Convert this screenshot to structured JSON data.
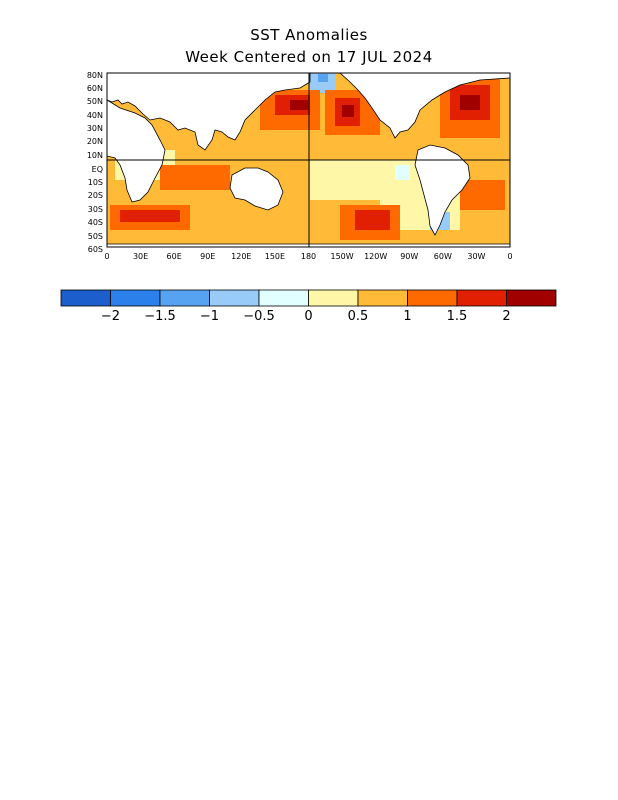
{
  "title": "SST Anomalies",
  "subtitle": "Week Centered on 17 JUL 2024",
  "map": {
    "lat_labels": [
      "80N",
      "60N",
      "50N",
      "40N",
      "30N",
      "20N",
      "10N",
      "EQ",
      "10S",
      "20S",
      "30S",
      "40S",
      "50S",
      "60S"
    ],
    "lon_labels": [
      "0",
      "30E",
      "60E",
      "90E",
      "120E",
      "150E",
      "180",
      "150W",
      "120W",
      "90W",
      "60W",
      "30W",
      "0"
    ]
  },
  "colorbar": {
    "colors": [
      "#1c5fcc",
      "#2b80eb",
      "#56a3f2",
      "#98cbf8",
      "#e2ffff",
      "#fff7a8",
      "#ffba38",
      "#ff6a00",
      "#e02000",
      "#a00000"
    ],
    "tick_labels": [
      "−2",
      "−1.5",
      "−1",
      "−0.5",
      "0",
      "0.5",
      "1",
      "1.5",
      "2"
    ]
  },
  "palette": {
    "land": "#ffffff",
    "coast": "#000000",
    "neutral_ocean": "#fff7a8",
    "warm_light": "#ffba38",
    "warm": "#ff6a00",
    "hot": "#e02000",
    "very_hot": "#a00000",
    "cool": "#98cbf8",
    "cold": "#56a3f2"
  }
}
